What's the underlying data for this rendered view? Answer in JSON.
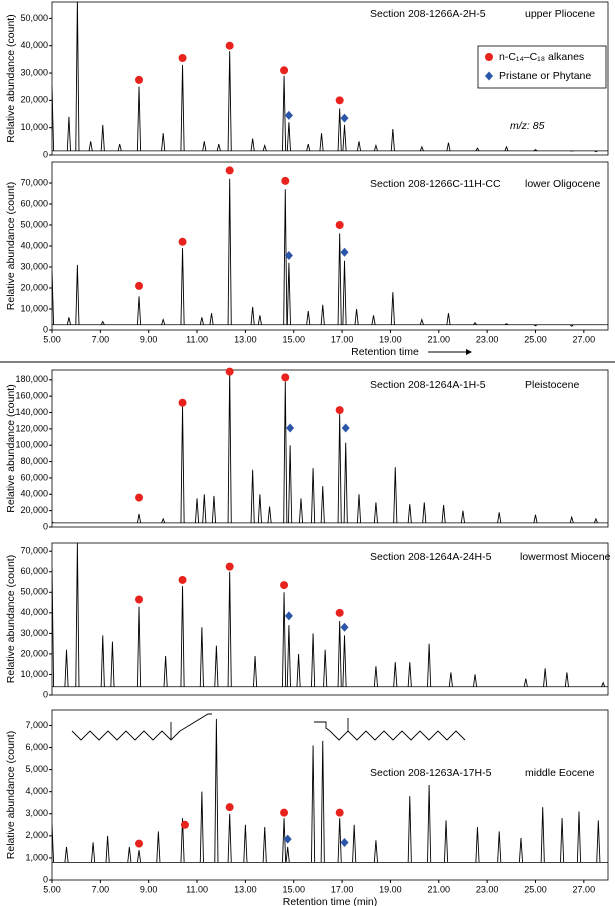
{
  "chart_data": [
    {
      "type": "chromatogram",
      "y_label": "Relative abundance (count)",
      "section": "Section 208-1266A-2H-5",
      "age": "upper Pliocene",
      "note": "m/z: 85",
      "legend": [
        {
          "name": "n-C₁₄–C₁₈ alkanes",
          "color": "#e8221c",
          "marker": "circle"
        },
        {
          "name": "Pristane or Phytane",
          "color": "#2a55a8",
          "marker": "diamond"
        }
      ],
      "xlim": [
        5,
        28
      ],
      "ylim": [
        0,
        56000
      ],
      "yticks": [
        0,
        {
          "value": 10000,
          "label": "10,000"
        },
        {
          "value": 20000,
          "label": "20,000"
        },
        {
          "value": 30000,
          "label": "30,000"
        },
        {
          "value": 40000,
          "label": "40,000"
        },
        {
          "value": 50000,
          "label": "50,000"
        }
      ],
      "trace": {
        "color": "#000000",
        "baseline": 1500,
        "x": [
          5.0,
          5.7,
          6.05,
          6.6,
          7.1,
          7.8,
          8.6,
          9.6,
          10.4,
          11.3,
          11.9,
          12.35,
          13.3,
          13.8,
          14.6,
          14.8,
          15.6,
          16.15,
          16.9,
          17.1,
          17.7,
          18.4,
          19.1,
          20.3,
          21.4,
          22.6,
          23.8,
          25.0,
          26.5,
          27.5
        ],
        "values": [
          25000,
          14000,
          57000,
          5000,
          11000,
          4000,
          25000,
          8000,
          33000,
          5000,
          4000,
          38000,
          6000,
          3500,
          29000,
          12000,
          4000,
          8000,
          17000,
          11000,
          5000,
          3500,
          9500,
          3000,
          4500,
          2500,
          3000,
          2000,
          1500,
          1200
        ]
      },
      "alkanes": {
        "color": "#e8221c",
        "x": [
          8.6,
          10.4,
          12.35,
          14.6,
          16.9
        ],
        "values": [
          27500,
          35500,
          40000,
          31000,
          20000
        ]
      },
      "isoprenoids": {
        "color": "#2a55a8",
        "x": [
          14.8,
          17.1
        ],
        "values": [
          14500,
          13500
        ]
      }
    },
    {
      "type": "chromatogram",
      "y_label": "Relative abundance (count)",
      "section": "Section 208-1266C-11H-CC",
      "age": "lower Oligocene",
      "x_label": "Retention time",
      "xlim": [
        5,
        28
      ],
      "ylim": [
        0,
        80000
      ],
      "yticks": [
        0,
        {
          "value": 10000,
          "label": "10,000"
        },
        {
          "value": 20000,
          "label": "20,000"
        },
        {
          "value": 30000,
          "label": "30,000"
        },
        {
          "value": 40000,
          "label": "40,000"
        },
        {
          "value": 50000,
          "label": "50,000"
        },
        {
          "value": 60000,
          "label": "60,000"
        },
        {
          "value": 70000,
          "label": "70,000"
        }
      ],
      "xticks": [
        {
          "value": 5,
          "label": "5.00"
        },
        {
          "value": 7,
          "label": "7.00"
        },
        {
          "value": 9,
          "label": "9.00"
        },
        {
          "value": 11,
          "label": "11.00"
        },
        {
          "value": 13,
          "label": "13.00"
        },
        {
          "value": 15,
          "label": "15.00"
        },
        {
          "value": 17,
          "label": "17.00"
        },
        {
          "value": 19,
          "label": "19.00"
        },
        {
          "value": 21,
          "label": "21.00"
        },
        {
          "value": 23,
          "label": "23.00"
        },
        {
          "value": 25,
          "label": "25.00"
        },
        {
          "value": 27,
          "label": "27.00"
        }
      ],
      "trace": {
        "color": "#000000",
        "baseline": 2500,
        "x": [
          5.0,
          5.7,
          6.05,
          7.1,
          8.6,
          9.6,
          10.4,
          11.2,
          11.6,
          12.35,
          13.3,
          13.6,
          14.65,
          14.8,
          15.6,
          16.2,
          16.9,
          17.1,
          17.6,
          18.3,
          19.1,
          20.3,
          21.4,
          22.5,
          23.8,
          25.0,
          26.5
        ],
        "values": [
          28000,
          6000,
          31000,
          4000,
          16000,
          5000,
          39000,
          6000,
          8000,
          72000,
          11000,
          7000,
          67000,
          32000,
          9000,
          12000,
          46000,
          33000,
          10000,
          7000,
          18000,
          5000,
          8000,
          3500,
          3000,
          2000,
          1800
        ]
      },
      "alkanes": {
        "color": "#e8221c",
        "x": [
          8.6,
          10.4,
          12.35,
          14.65,
          16.9
        ],
        "values": [
          21000,
          42000,
          76000,
          71000,
          50000
        ]
      },
      "isoprenoids": {
        "color": "#2a55a8",
        "x": [
          14.8,
          17.1
        ],
        "values": [
          35500,
          37000
        ]
      }
    },
    {
      "type": "chromatogram",
      "y_label": "Relative abundance (count)",
      "section": "Section 208-1264A-1H-5",
      "age": "Pleistocene",
      "xlim": [
        5,
        28
      ],
      "ylim": [
        0,
        192000
      ],
      "yticks": [
        0,
        {
          "value": 20000,
          "label": "20,000"
        },
        {
          "value": 40000,
          "label": "40,000"
        },
        {
          "value": 60000,
          "label": "60,000"
        },
        {
          "value": 80000,
          "label": "80,000"
        },
        {
          "value": 100000,
          "label": "100,000"
        },
        {
          "value": 120000,
          "label": "120,000"
        },
        {
          "value": 140000,
          "label": "140,000"
        },
        {
          "value": 160000,
          "label": "160,000"
        },
        {
          "value": 180000,
          "label": "180,000"
        }
      ],
      "trace": {
        "color": "#000000",
        "baseline": 5000,
        "x": [
          5.0,
          8.6,
          9.6,
          10.4,
          11.0,
          11.3,
          11.7,
          12.35,
          13.3,
          13.6,
          14.0,
          14.65,
          14.85,
          15.3,
          15.8,
          16.2,
          16.9,
          17.15,
          17.7,
          18.4,
          19.2,
          19.8,
          20.4,
          21.2,
          22.0,
          23.5,
          25.0,
          26.5,
          27.5
        ],
        "values": [
          6000,
          16000,
          10000,
          148000,
          35000,
          40000,
          38000,
          192000,
          70000,
          40000,
          25000,
          178000,
          100000,
          35000,
          72000,
          50000,
          138000,
          103000,
          40000,
          30000,
          73000,
          28000,
          30000,
          27000,
          20000,
          18000,
          15000,
          12000,
          10000
        ]
      },
      "alkanes": {
        "color": "#e8221c",
        "x": [
          8.6,
          10.4,
          12.35,
          14.65,
          16.9
        ],
        "values": [
          36000,
          152000,
          190000,
          183000,
          143000
        ]
      },
      "isoprenoids": {
        "color": "#2a55a8",
        "x": [
          14.85,
          17.15
        ],
        "values": [
          121000,
          121000
        ]
      }
    },
    {
      "type": "chromatogram",
      "y_label": "Relative abundance (count)",
      "section": "Section 208-1264A-24H-5",
      "age": "lowermost Miocene",
      "xlim": [
        5,
        28
      ],
      "ylim": [
        0,
        74000
      ],
      "yticks": [
        0,
        {
          "value": 10000,
          "label": "10,000"
        },
        {
          "value": 20000,
          "label": "20,000"
        },
        {
          "value": 30000,
          "label": "30,000"
        },
        {
          "value": 40000,
          "label": "40,000"
        },
        {
          "value": 50000,
          "label": "50,000"
        },
        {
          "value": 60000,
          "label": "60,000"
        },
        {
          "value": 70000,
          "label": "70,000"
        }
      ],
      "trace": {
        "color": "#000000",
        "baseline": 4000,
        "x": [
          5.0,
          5.6,
          6.05,
          7.1,
          7.5,
          8.6,
          9.7,
          10.4,
          11.2,
          11.8,
          12.35,
          13.4,
          14.6,
          14.8,
          15.2,
          15.8,
          16.3,
          16.9,
          17.1,
          18.4,
          19.2,
          19.8,
          20.6,
          21.5,
          22.5,
          24.6,
          25.4,
          26.3,
          27.8
        ],
        "values": [
          62000,
          22000,
          74000,
          29000,
          26000,
          43000,
          19000,
          53000,
          33000,
          24000,
          60000,
          19000,
          50000,
          34000,
          20000,
          30000,
          22000,
          36000,
          29000,
          14000,
          16000,
          16000,
          25000,
          11000,
          10000,
          8000,
          13000,
          11000,
          6000
        ]
      },
      "alkanes": {
        "color": "#e8221c",
        "x": [
          8.6,
          10.4,
          12.35,
          14.6,
          16.9
        ],
        "values": [
          46500,
          56000,
          62500,
          53500,
          40000
        ]
      },
      "isoprenoids": {
        "color": "#2a55a8",
        "x": [
          14.8,
          17.1
        ],
        "values": [
          38500,
          33000
        ]
      }
    },
    {
      "type": "chromatogram",
      "y_label": "Relative abundance (count)",
      "section": "Section 208-1263A-17H-5",
      "age": "middle Eocene",
      "x_label": "Retention time (min)",
      "xlim": [
        5,
        28
      ],
      "ylim": [
        0,
        7700
      ],
      "yticks": [
        0,
        {
          "value": 1000,
          "label": "1,000"
        },
        {
          "value": 2000,
          "label": "2,000"
        },
        {
          "value": 3000,
          "label": "3,000"
        },
        {
          "value": 4000,
          "label": "4,000"
        },
        {
          "value": 5000,
          "label": "5,000"
        },
        {
          "value": 6000,
          "label": "6,000"
        },
        {
          "value": 7000,
          "label": "7,000"
        }
      ],
      "xticks": [
        {
          "value": 5,
          "label": "5.00"
        },
        {
          "value": 7,
          "label": "7.00"
        },
        {
          "value": 9,
          "label": "9.00"
        },
        {
          "value": 11,
          "label": "11.00"
        },
        {
          "value": 13,
          "label": "13.00"
        },
        {
          "value": 15,
          "label": "15.00"
        },
        {
          "value": 17,
          "label": "17.00"
        },
        {
          "value": 19,
          "label": "19.00"
        },
        {
          "value": 21,
          "label": "21.00"
        },
        {
          "value": 23,
          "label": "23.00"
        },
        {
          "value": 25,
          "label": "25.00"
        },
        {
          "value": 27,
          "label": "27.00"
        }
      ],
      "trace": {
        "color": "#000000",
        "baseline": 800,
        "x": [
          5.0,
          5.6,
          6.7,
          7.3,
          8.2,
          8.6,
          9.4,
          10.4,
          11.2,
          11.8,
          12.35,
          13.0,
          13.8,
          14.6,
          14.75,
          15.8,
          16.2,
          16.9,
          17.5,
          18.4,
          19.8,
          20.6,
          21.3,
          22.6,
          23.5,
          24.4,
          25.3,
          26.1,
          26.8,
          27.6
        ],
        "values": [
          2500,
          1500,
          1700,
          2000,
          1500,
          1350,
          2200,
          2800,
          4000,
          7300,
          3000,
          2500,
          2400,
          2800,
          1500,
          6100,
          6300,
          2800,
          2500,
          1800,
          3800,
          4300,
          2700,
          2400,
          2200,
          1900,
          3300,
          2800,
          3100,
          2700
        ]
      },
      "alkanes": {
        "color": "#e8221c",
        "x": [
          8.6,
          10.5,
          12.35,
          14.6,
          16.9
        ],
        "values": [
          1650,
          2500,
          3300,
          3050,
          3050
        ]
      },
      "isoprenoids": {
        "color": "#2a55a8",
        "x": [
          14.75,
          17.1
        ],
        "values": [
          1850,
          1700
        ]
      }
    }
  ]
}
